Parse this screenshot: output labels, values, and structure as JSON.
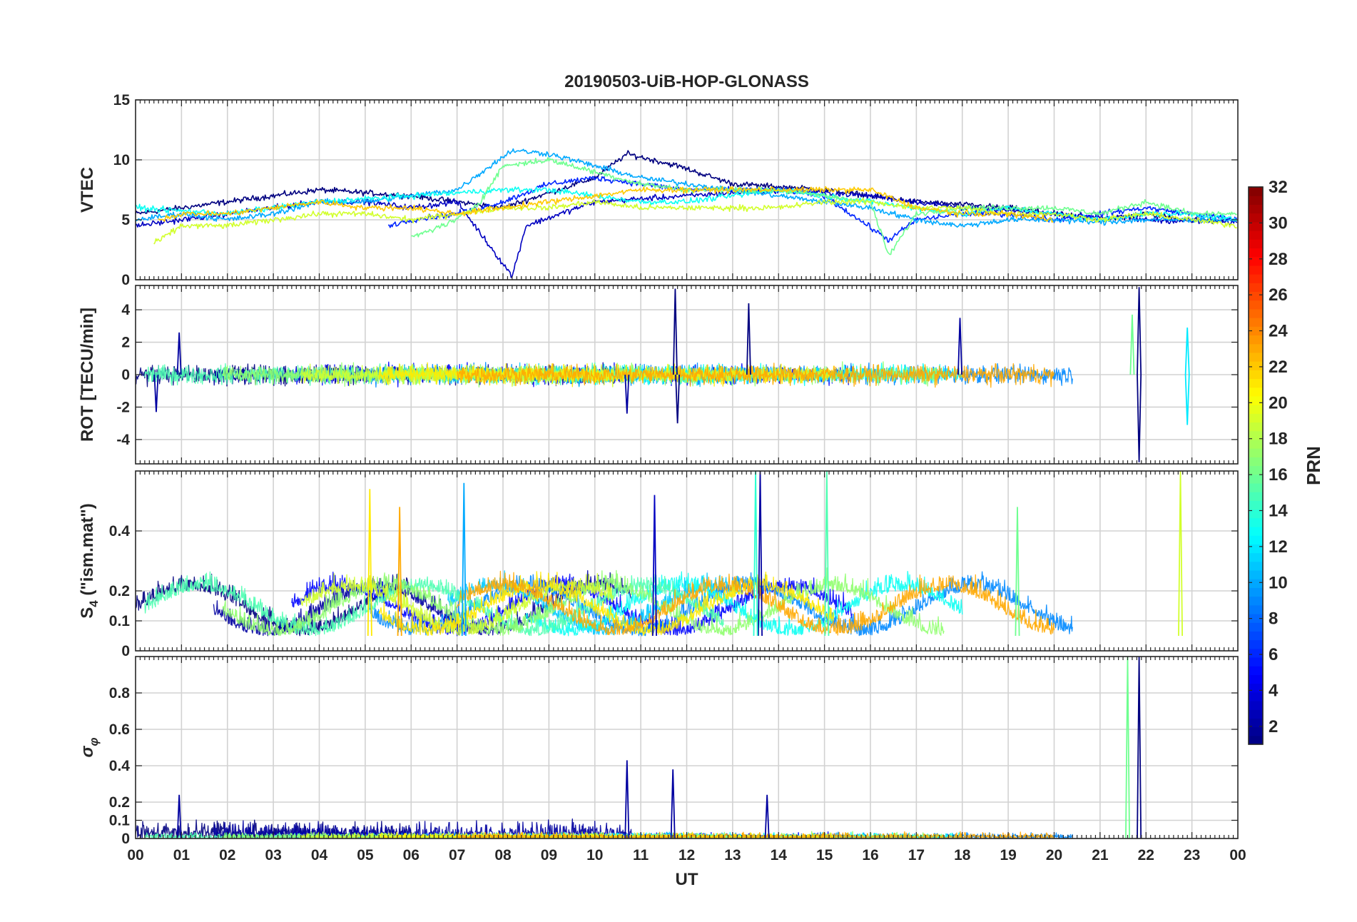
{
  "chart_data": {
    "type": "line",
    "title": "20190503-UiB-HOP-GLONASS",
    "xlabel": "UT",
    "x_tick_labels": [
      "00",
      "01",
      "02",
      "03",
      "04",
      "05",
      "06",
      "07",
      "08",
      "09",
      "10",
      "11",
      "12",
      "13",
      "14",
      "15",
      "16",
      "17",
      "18",
      "19",
      "20",
      "21",
      "22",
      "23",
      "00"
    ],
    "xlim_hours": [
      0,
      24
    ],
    "colormap": "jet",
    "colorbar": {
      "label": "PRN",
      "range": [
        1,
        32
      ],
      "tick_labels": [
        "2",
        "4",
        "6",
        "8",
        "10",
        "12",
        "14",
        "16",
        "18",
        "20",
        "22",
        "24",
        "26",
        "28",
        "30",
        "32"
      ],
      "placement": "right"
    },
    "grid": true,
    "panels": [
      {
        "id": "vtec",
        "ylabel": "VTEC",
        "ylim": [
          0,
          15
        ],
        "yticks": [
          0,
          5,
          10,
          15
        ],
        "ytick_labels": [
          "0",
          "5",
          "10",
          "15"
        ],
        "typical_range": [
          3,
          9
        ],
        "series": [
          {
            "prn": 1,
            "x": [
              0,
              2,
              4,
              6,
              8,
              10,
              10.7,
              11.8,
              13,
              15,
              17,
              19,
              21,
              22,
              23,
              24
            ],
            "y": [
              5.5,
              6.5,
              7.5,
              7.0,
              6.0,
              8.5,
              10.5,
              9.5,
              8.0,
              7.5,
              6.5,
              6.0,
              5.0,
              5.5,
              5.0,
              5.0
            ]
          },
          {
            "prn": 3,
            "x": [
              0,
              1,
              2,
              3,
              4,
              5,
              6,
              7,
              8.2,
              8.5,
              10,
              12,
              14,
              16,
              18,
              20,
              22,
              24
            ],
            "y": [
              4.5,
              5.0,
              5.5,
              6.0,
              6.5,
              6.5,
              6.0,
              6.5,
              0.3,
              4.5,
              6.5,
              7.0,
              7.5,
              7.0,
              6.0,
              5.5,
              5.0,
              4.8
            ]
          },
          {
            "prn": 6,
            "x": [
              5.5,
              6,
              7,
              8,
              9,
              10,
              11,
              12,
              13,
              14,
              15,
              16.4,
              17,
              18,
              19,
              20,
              21,
              22,
              23,
              24
            ],
            "y": [
              4.5,
              5.0,
              5.5,
              6.5,
              8.0,
              8.5,
              8.0,
              7.5,
              7.5,
              7.5,
              7.0,
              3.3,
              5.0,
              5.5,
              5.5,
              5.0,
              5.5,
              6.0,
              5.5,
              5.0
            ]
          },
          {
            "prn": 10,
            "x": [
              0,
              1,
              2,
              3,
              4,
              5,
              6,
              7,
              8.2,
              9,
              10,
              11,
              12,
              13,
              14,
              15,
              16,
              17,
              18,
              19,
              20,
              21,
              22,
              23,
              24
            ],
            "y": [
              5.0,
              5.5,
              5.0,
              5.5,
              6.5,
              6.5,
              7.0,
              7.5,
              10.8,
              10.5,
              9.5,
              8.5,
              8.0,
              7.5,
              7.0,
              6.5,
              6.0,
              5.0,
              4.5,
              5.0,
              5.0,
              4.8,
              5.0,
              5.0,
              5.0
            ]
          },
          {
            "prn": 13,
            "x": [
              0,
              2,
              4,
              6,
              8,
              9,
              10,
              11,
              12,
              13,
              14,
              15,
              16,
              17,
              18,
              19,
              20,
              21,
              22,
              23,
              24
            ],
            "y": [
              6.0,
              5.5,
              6.5,
              7.0,
              7.5,
              7.5,
              7.0,
              6.5,
              6.5,
              7.0,
              7.5,
              7.0,
              6.5,
              6.0,
              5.5,
              6.0,
              5.5,
              5.0,
              5.5,
              5.5,
              5.0
            ]
          },
          {
            "prn": 16,
            "x": [
              6,
              7,
              7.5,
              8,
              9,
              10,
              11,
              12,
              13,
              14,
              15,
              16,
              16.4,
              17,
              18,
              19,
              20,
              21,
              22,
              23,
              24
            ],
            "y": [
              3.5,
              5.0,
              6.5,
              9.5,
              10.0,
              9.0,
              8.0,
              7.5,
              7.5,
              7.5,
              7.0,
              6.5,
              2.0,
              5.5,
              6.0,
              6.0,
              6.0,
              5.5,
              6.5,
              5.5,
              5.5
            ]
          },
          {
            "prn": 19,
            "x": [
              0.4,
              1,
              2,
              3,
              4,
              5,
              6,
              7,
              8,
              9,
              10,
              11,
              12,
              13,
              14,
              15,
              16,
              17,
              18,
              19,
              20,
              21,
              22,
              23,
              24
            ],
            "y": [
              3.0,
              4.5,
              4.5,
              5.0,
              5.5,
              5.5,
              5.0,
              5.5,
              6.0,
              6.0,
              6.5,
              6.0,
              6.0,
              6.0,
              6.0,
              6.5,
              6.5,
              6.0,
              6.0,
              5.5,
              5.5,
              5.0,
              5.5,
              5.0,
              4.5
            ]
          },
          {
            "prn": 22,
            "x": [
              0.5,
              1,
              2,
              3,
              4,
              5,
              6,
              7,
              11,
              12,
              13,
              14,
              15,
              16,
              17,
              18,
              19,
              20
            ],
            "y": [
              5.0,
              5.5,
              5.5,
              6.0,
              6.5,
              6.0,
              6.0,
              5.5,
              7.5,
              7.5,
              7.5,
              7.5,
              7.5,
              7.5,
              6.0,
              5.5,
              5.5,
              5.0
            ]
          }
        ]
      },
      {
        "id": "rot",
        "ylabel": "ROT [TECU/min]",
        "ylim": [
          -5.5,
          5.5
        ],
        "yticks": [
          -4,
          -2,
          0,
          2,
          4
        ],
        "ytick_labels": [
          "-4",
          "-2",
          "0",
          "2",
          "4"
        ],
        "typical_range": [
          -1.5,
          1.5
        ],
        "spikes": [
          {
            "x": 0.95,
            "y": 2.6,
            "prn": 2
          },
          {
            "x": 0.45,
            "y": -2.3,
            "prn": 2
          },
          {
            "x": 10.7,
            "y": -2.4,
            "prn": 2
          },
          {
            "x": 11.75,
            "y": 5.3,
            "prn": 1
          },
          {
            "x": 11.8,
            "y": -3.0,
            "prn": 1
          },
          {
            "x": 13.35,
            "y": 4.4,
            "prn": 1
          },
          {
            "x": 17.95,
            "y": 3.5,
            "prn": 2
          },
          {
            "x": 21.7,
            "y": 3.7,
            "prn": 16
          },
          {
            "x": 21.85,
            "y": 5.4,
            "prn": 1
          },
          {
            "x": 21.85,
            "y": -5.4,
            "prn": 1
          },
          {
            "x": 22.9,
            "y": 2.9,
            "prn": 12
          },
          {
            "x": 22.9,
            "y": -3.1,
            "prn": 12
          }
        ]
      },
      {
        "id": "s4",
        "ylabel": "S4 (\"ism.mat\")",
        "ylim": [
          0,
          0.6
        ],
        "yticks": [
          0,
          0.1,
          0.2,
          0.4
        ],
        "ytick_labels": [
          "0",
          "0.1",
          "0.2",
          "0.4"
        ],
        "typical_range": [
          0.05,
          0.3
        ],
        "spikes": [
          {
            "x": 5.1,
            "y": 0.54,
            "prn": 21
          },
          {
            "x": 5.75,
            "y": 0.48,
            "prn": 23
          },
          {
            "x": 7.15,
            "y": 0.56,
            "prn": 10
          },
          {
            "x": 11.3,
            "y": 0.52,
            "prn": 3
          },
          {
            "x": 13.6,
            "y": 0.6,
            "prn": 2
          },
          {
            "x": 13.5,
            "y": 0.6,
            "prn": 14
          },
          {
            "x": 15.05,
            "y": 0.6,
            "prn": 15
          },
          {
            "x": 22.75,
            "y": 0.6,
            "prn": 19
          },
          {
            "x": 19.2,
            "y": 0.48,
            "prn": 16
          }
        ]
      },
      {
        "id": "sigma_phi",
        "ylabel": "σφ",
        "ylim": [
          0,
          1
        ],
        "yticks": [
          0,
          0.1,
          0.2,
          0.4,
          0.6,
          0.8
        ],
        "ytick_labels": [
          "0",
          "0.1",
          "0.2",
          "0.4",
          "0.6",
          "0.8"
        ],
        "typical_range": [
          0,
          0.12
        ],
        "spikes": [
          {
            "x": 10.7,
            "y": 0.43,
            "prn": 2
          },
          {
            "x": 11.7,
            "y": 0.38,
            "prn": 2
          },
          {
            "x": 13.75,
            "y": 0.24,
            "prn": 2
          },
          {
            "x": 21.6,
            "y": 1.0,
            "prn": 16
          },
          {
            "x": 21.85,
            "y": 1.0,
            "prn": 1
          },
          {
            "x": 0.95,
            "y": 0.24,
            "prn": 2
          }
        ]
      }
    ]
  }
}
